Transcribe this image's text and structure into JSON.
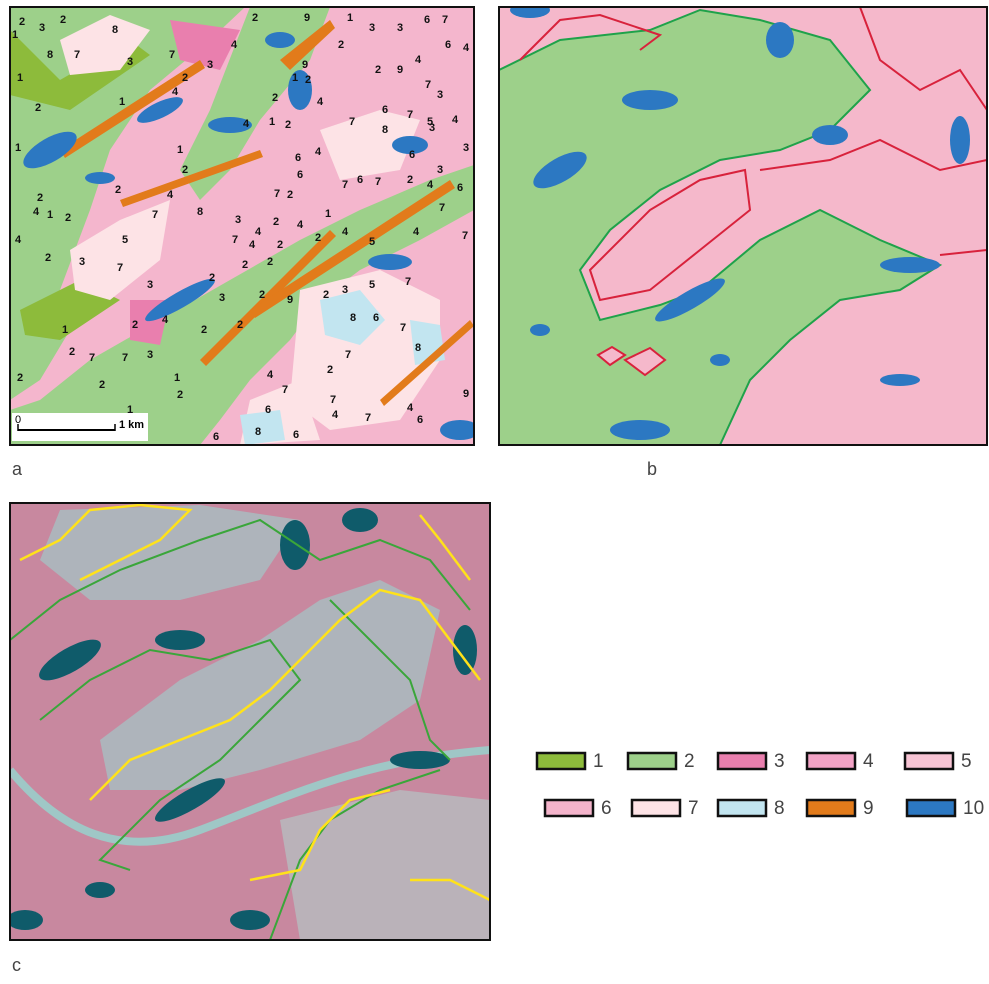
{
  "panels": [
    {
      "label": "a",
      "scale_bar": {
        "start": "0",
        "end": "1 km"
      },
      "map_labels": [
        "2",
        "1",
        "3",
        "2",
        "8",
        "8",
        "7",
        "3",
        "7",
        "2",
        "9",
        "1",
        "3",
        "3",
        "6",
        "7",
        "6",
        "4",
        "2",
        "2",
        "9",
        "4",
        "7",
        "3",
        "9",
        "1",
        "4",
        "3",
        "2",
        "4",
        "2",
        "2",
        "4",
        "1",
        "2",
        "1",
        "1",
        "2",
        "4",
        "1",
        "2",
        "4",
        "2",
        "3",
        "7",
        "5",
        "7",
        "4",
        "8",
        "3",
        "1",
        "2",
        "2",
        "3",
        "7",
        "4",
        "2",
        "4",
        "2",
        "2",
        "2",
        "2",
        "4",
        "5",
        "1",
        "2",
        "7",
        "6",
        "4",
        "7",
        "6",
        "7",
        "2",
        "4",
        "3",
        "6",
        "7",
        "4",
        "7",
        "6",
        "3",
        "4",
        "3",
        "7",
        "5",
        "6",
        "8",
        "7",
        "2",
        "1",
        "4",
        "6",
        "4",
        "3",
        "5",
        "7",
        "2",
        "9",
        "2",
        "3",
        "2",
        "8",
        "6",
        "7",
        "8",
        "7",
        "2",
        "2",
        "2",
        "4",
        "2",
        "3",
        "7",
        "7",
        "2",
        "1",
        "2",
        "2",
        "1",
        "2",
        "1",
        "4",
        "7",
        "6",
        "7",
        "4",
        "7",
        "4",
        "6",
        "9",
        "8",
        "6",
        "6"
      ]
    },
    {
      "label": "b"
    },
    {
      "label": "c"
    }
  ],
  "legend": {
    "items": [
      {
        "label": "1",
        "color": "#8dbb3b"
      },
      {
        "label": "2",
        "color": "#9dd08a"
      },
      {
        "label": "3",
        "color": "#e97fae"
      },
      {
        "label": "4",
        "color": "#f2a3c6"
      },
      {
        "label": "5",
        "color": "#f7c4d4"
      },
      {
        "label": "6",
        "color": "#f4b4cb"
      },
      {
        "label": "7",
        "color": "#fde3e6"
      },
      {
        "label": "8",
        "color": "#c2e5f0"
      },
      {
        "label": "9",
        "color": "#e27b1b"
      },
      {
        "label": "10",
        "color": "#2c78c2"
      }
    ]
  }
}
